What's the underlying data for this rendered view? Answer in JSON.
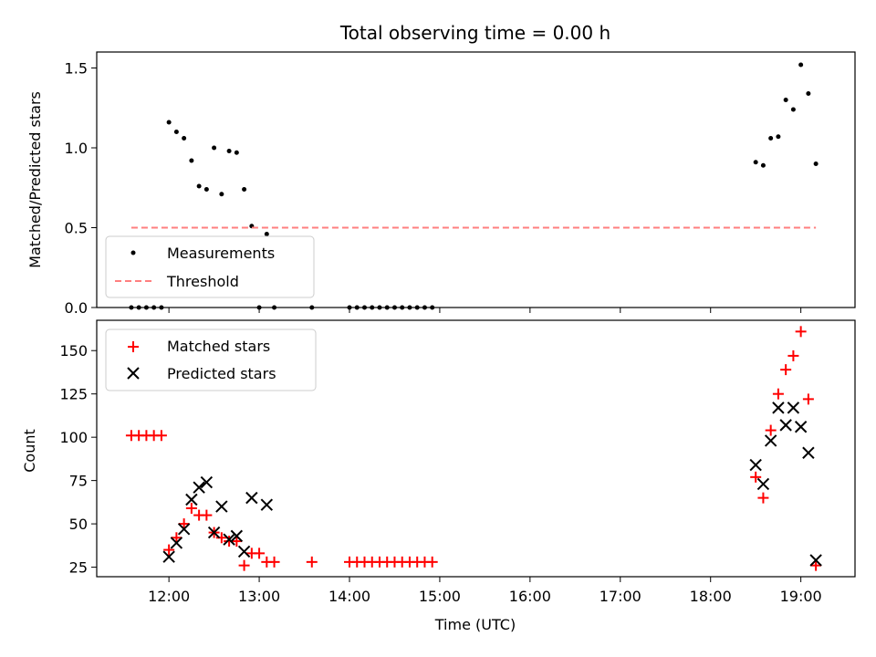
{
  "chart_data": [
    {
      "type": "scatter",
      "title": "Total observing time = 0.00 h",
      "xlabel": "",
      "ylabel": "Matched/Predicted stars",
      "xlim": [
        "11:12",
        "19:36"
      ],
      "ylim": [
        0,
        1.6
      ],
      "yticks": [
        "0.0",
        "0.5",
        "1.0",
        "1.5"
      ],
      "xticks": [
        "12:00",
        "13:00",
        "14:00",
        "15:00",
        "16:00",
        "17:00",
        "18:00",
        "19:00"
      ],
      "show_x_tick_labels": false,
      "grid": false,
      "legend": "lower-left",
      "series": [
        {
          "name": "Measurements",
          "color": "#000000",
          "marker": "dot",
          "x": [
            "11:35",
            "11:40",
            "11:45",
            "11:50",
            "11:55",
            "12:00",
            "12:05",
            "12:10",
            "12:15",
            "12:20",
            "12:25",
            "12:30",
            "12:35",
            "12:40",
            "12:45",
            "12:50",
            "12:55",
            "13:00",
            "13:05",
            "13:10",
            "13:35",
            "14:00",
            "14:05",
            "14:10",
            "14:15",
            "14:20",
            "14:25",
            "14:30",
            "14:35",
            "14:40",
            "14:45",
            "14:50",
            "14:55",
            "18:30",
            "18:35",
            "18:40",
            "18:45",
            "18:50",
            "18:55",
            "19:00",
            "19:05",
            "19:10"
          ],
          "y": [
            0,
            0,
            0,
            0,
            0,
            1.16,
            1.1,
            1.06,
            0.92,
            0.76,
            0.74,
            1.0,
            0.71,
            0.98,
            0.97,
            0.74,
            0.51,
            0,
            0.46,
            0,
            0,
            0,
            0,
            0,
            0,
            0,
            0,
            0,
            0,
            0,
            0,
            0,
            0,
            0.91,
            0.89,
            1.06,
            1.07,
            1.3,
            1.24,
            1.52,
            1.34,
            0.9
          ]
        },
        {
          "name": "Threshold",
          "color": "#ff7f7f",
          "style": "dashed",
          "x": [
            "11:35",
            "19:10"
          ],
          "y": [
            0.5,
            0.5
          ]
        }
      ]
    },
    {
      "type": "scatter",
      "title": "",
      "xlabel": "Time (UTC)",
      "ylabel": "Count",
      "xlim": [
        "11:12",
        "19:36"
      ],
      "ylim": [
        19.5,
        167.5
      ],
      "yticks": [
        "25",
        "50",
        "75",
        "100",
        "125",
        "150"
      ],
      "xticks": [
        "12:00",
        "13:00",
        "14:00",
        "15:00",
        "16:00",
        "17:00",
        "18:00",
        "19:00"
      ],
      "show_x_tick_labels": true,
      "grid": false,
      "legend": "upper-left",
      "series": [
        {
          "name": "Matched stars",
          "color": "#ff0000",
          "marker": "plus",
          "x": [
            "11:35",
            "11:40",
            "11:45",
            "11:50",
            "11:55",
            "12:00",
            "12:05",
            "12:10",
            "12:15",
            "12:20",
            "12:25",
            "12:30",
            "12:35",
            "12:40",
            "12:45",
            "12:50",
            "12:55",
            "13:00",
            "13:05",
            "13:10",
            "13:35",
            "14:00",
            "14:05",
            "14:10",
            "14:15",
            "14:20",
            "14:25",
            "14:30",
            "14:35",
            "14:40",
            "14:45",
            "14:50",
            "14:55",
            "18:30",
            "18:35",
            "18:40",
            "18:45",
            "18:50",
            "18:55",
            "19:00",
            "19:05",
            "19:10"
          ],
          "y": [
            101,
            101,
            101,
            101,
            101,
            35,
            42,
            50,
            59,
            55,
            55,
            45,
            42,
            40,
            40,
            26,
            33,
            33,
            28,
            28,
            28,
            28,
            28,
            28,
            28,
            28,
            28,
            28,
            28,
            28,
            28,
            28,
            28,
            77,
            65,
            104,
            125,
            139,
            147,
            161,
            122,
            26
          ]
        },
        {
          "name": "Predicted stars",
          "color": "#000000",
          "marker": "x",
          "x": [
            "12:00",
            "12:05",
            "12:10",
            "12:15",
            "12:20",
            "12:25",
            "12:30",
            "12:35",
            "12:40",
            "12:45",
            "12:50",
            "12:55",
            "13:05",
            "18:30",
            "18:35",
            "18:40",
            "18:45",
            "18:50",
            "18:55",
            "19:00",
            "19:05",
            "19:10"
          ],
          "y": [
            31,
            39,
            47,
            64,
            71,
            74,
            45,
            60,
            41,
            43,
            34,
            65,
            61,
            84,
            73,
            98,
            117,
            107,
            117,
            106,
            91,
            29
          ]
        }
      ]
    }
  ]
}
